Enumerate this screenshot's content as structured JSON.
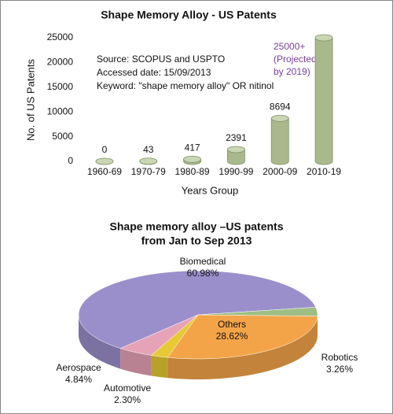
{
  "chart_data": [
    {
      "type": "bar",
      "title": "Shape Memory Alloy - US Patents",
      "annotations": [
        "Source: SCOPUS and USPTO",
        "Accessed date: 15/09/2013",
        "Keyword: \"shape memory alloy\" OR nitinol"
      ],
      "note": [
        "(Projected",
        "by 2019)"
      ],
      "y_label": "No. of US Patents",
      "x_label": "Years Group",
      "categories": [
        "1960-69",
        "1970-79",
        "1980-89",
        "1990-99",
        "2000-09",
        "2010-19"
      ],
      "values": [
        0,
        43,
        417,
        2391,
        8694,
        25000
      ],
      "value_labels": [
        "0",
        "43",
        "417",
        "2391",
        "8694",
        "25000+"
      ],
      "color": "#a9b98c",
      "ylim": [
        0,
        25000
      ],
      "yticks": [
        0,
        5000,
        10000,
        15000,
        20000,
        25000
      ],
      "grid": false
    },
    {
      "type": "pie",
      "title": [
        "Shape memory alloy –US patents",
        "from Jan to Sep 2013"
      ],
      "categories": [
        "Biomedical",
        "Robotics",
        "Others",
        "Automotive",
        "Aerospace"
      ],
      "values": [
        60.98,
        3.26,
        28.62,
        2.3,
        4.84
      ],
      "value_labels": [
        "60.98%",
        "3.26%",
        "28.62%",
        "2.30%",
        "4.84%"
      ],
      "colors": [
        "#9b8fcb",
        "#9fbe84",
        "#f4a448",
        "#e6c934",
        "#e6a3b7"
      ]
    }
  ]
}
